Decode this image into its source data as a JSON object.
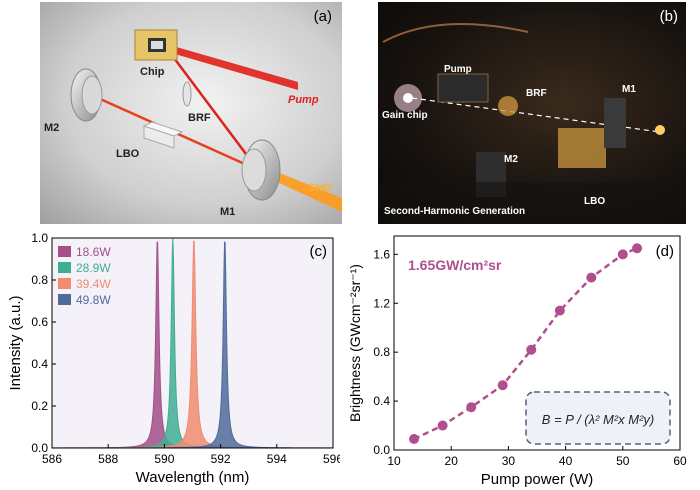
{
  "panel_a": {
    "label": "(a)",
    "labels": {
      "chip": "Chip",
      "pump": "Pump",
      "brf": "BRF",
      "m2": "M2",
      "lbo": "LBO",
      "shg": "SHG",
      "m1": "M1"
    }
  },
  "panel_b": {
    "label": "(b)",
    "labels": {
      "pump": "Pump",
      "brf": "BRF",
      "m1": "M1",
      "gain_chip": "Gain chip",
      "m2": "M2",
      "lbo": "LBO",
      "caption": "Second-Harmonic Generation"
    }
  },
  "colors": {
    "s1": "#a24f8a",
    "s2": "#3fae93",
    "s3": "#f08c70",
    "s4": "#4f6b9c",
    "brightness": "#b14e8d",
    "laser": "#e0201a",
    "shg": "#ff9a1a"
  },
  "chart_data": [
    {
      "type": "area",
      "label": "(c)",
      "xlabel": "Wavelength (nm)",
      "ylabel": "Intensity (a.u.)",
      "xlim": [
        586,
        596
      ],
      "ylim": [
        0,
        1.0
      ],
      "xticks": [
        "586",
        "588",
        "590",
        "592",
        "594",
        "596"
      ],
      "yticks": [
        "0.0",
        "0.2",
        "0.4",
        "0.6",
        "0.8",
        "1.0"
      ],
      "legend_position": "top-left",
      "series": [
        {
          "name": "18.6W",
          "center": 589.75,
          "fwhm": 0.14,
          "peak": 1.0
        },
        {
          "name": "28.9W",
          "center": 590.3,
          "fwhm": 0.14,
          "peak": 1.0
        },
        {
          "name": "39.4W",
          "center": 591.05,
          "fwhm": 0.16,
          "peak": 1.0
        },
        {
          "name": "49.8W",
          "center": 592.15,
          "fwhm": 0.14,
          "peak": 1.0
        }
      ]
    },
    {
      "type": "line",
      "label": "(d)",
      "xlabel": "Pump power (W)",
      "ylabel": "Brightness (GWcm⁻²sr⁻¹)",
      "xlim": [
        10,
        60
      ],
      "ylim": [
        0.0,
        1.75
      ],
      "xticks": [
        "10",
        "20",
        "30",
        "40",
        "50",
        "60"
      ],
      "yticks": [
        "0.0",
        "0.4",
        "0.8",
        "1.2",
        "1.6"
      ],
      "annotation": "1.65GW/cm²sr",
      "formula": "B = P / (λ² M²x M²y)",
      "x": [
        13.5,
        18.5,
        23.5,
        29,
        34,
        39,
        44.5,
        50,
        52.5
      ],
      "y": [
        0.09,
        0.2,
        0.35,
        0.53,
        0.82,
        1.14,
        1.41,
        1.6,
        1.65
      ]
    }
  ]
}
